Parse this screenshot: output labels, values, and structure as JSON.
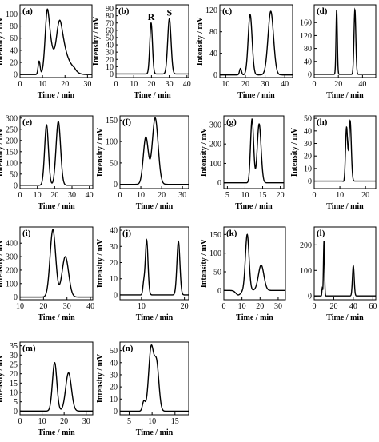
{
  "figure": {
    "panel_count": 14
  },
  "chart_data": [
    {
      "id": "a",
      "type": "line",
      "panel_label": "(a)",
      "xlabel": "Time / min",
      "ylabel": "Intensity / mV",
      "xlim": [
        0,
        32
      ],
      "ylim": [
        -5,
        115
      ],
      "xticks": [
        0,
        10,
        20,
        30
      ],
      "yticks": [
        0,
        20,
        40,
        60,
        80,
        100
      ],
      "baseline": 0,
      "peaks": [
        {
          "t": 8.5,
          "h": 22,
          "w": 0.45
        },
        {
          "t": 12.2,
          "h": 108,
          "w": 1.0,
          "tail": 2.2
        },
        {
          "t": 17.8,
          "h": 85,
          "w": 1.4,
          "tail": 3.2
        }
      ],
      "series": [
        {
          "x": [
            0,
            8.5,
            12.2,
            17.8,
            26,
            31
          ],
          "y": [
            0,
            22,
            108,
            85,
            6,
            0
          ]
        }
      ]
    },
    {
      "id": "b",
      "type": "line",
      "panel_label": "(b)",
      "xlabel": "Time / min",
      "ylabel": "Intensity / mV",
      "xlim": [
        0,
        41
      ],
      "ylim": [
        -5,
        95
      ],
      "xticks": [
        0,
        10,
        20,
        30,
        40
      ],
      "yticks": [
        0,
        10,
        20,
        30,
        40,
        50,
        60,
        70,
        80,
        90
      ],
      "baseline": 0,
      "peaks": [
        {
          "t": 19.8,
          "h": 70,
          "w": 0.75
        },
        {
          "t": 30.1,
          "h": 76,
          "w": 0.95
        }
      ],
      "annotations": [
        {
          "text": "R",
          "t": 19.8
        },
        {
          "text": "S",
          "t": 30.1
        }
      ],
      "series": [
        {
          "x": [
            0,
            19.8,
            30.1,
            41
          ],
          "y": [
            0,
            70,
            76,
            0
          ]
        }
      ]
    },
    {
      "id": "c",
      "type": "line",
      "panel_label": "(c)",
      "xlabel": "Time / min",
      "ylabel": "Intensity / mV",
      "xlim": [
        7,
        44
      ],
      "ylim": [
        -5,
        130
      ],
      "xticks": [
        10,
        20,
        30,
        40
      ],
      "yticks": [
        0,
        40,
        80,
        120
      ],
      "baseline": 0,
      "peaks": [
        {
          "t": 17.5,
          "h": 12,
          "w": 0.5
        },
        {
          "t": 22.4,
          "h": 112,
          "w": 1.0
        },
        {
          "t": 32.9,
          "h": 118,
          "w": 1.4
        }
      ],
      "series": [
        {
          "x": [
            7,
            17.5,
            22.4,
            32.9,
            44
          ],
          "y": [
            0,
            12,
            112,
            118,
            0
          ]
        }
      ]
    },
    {
      "id": "d",
      "type": "line",
      "panel_label": "(d)",
      "xlabel": "Time / min",
      "ylabel": "",
      "xlim": [
        0,
        51
      ],
      "ylim": [
        -10,
        215
      ],
      "xticks": [
        0,
        20,
        40
      ],
      "yticks": [
        0,
        40,
        80,
        120,
        160
      ],
      "baseline": 0,
      "peaks": [
        {
          "t": 18.6,
          "h": 200,
          "w": 0.55
        },
        {
          "t": 33.7,
          "h": 200,
          "w": 0.75
        }
      ],
      "series": [
        {
          "x": [
            0,
            18.6,
            33.7,
            51
          ],
          "y": [
            0,
            200,
            200,
            0
          ]
        }
      ]
    },
    {
      "id": "e",
      "type": "line",
      "panel_label": "(e)",
      "xlabel": "Time / min",
      "ylabel": "Intensity / mV",
      "xlim": [
        0,
        42
      ],
      "ylim": [
        -15,
        310
      ],
      "xticks": [
        0,
        10,
        20,
        30,
        40
      ],
      "yticks": [
        0,
        50,
        100,
        150,
        200,
        250,
        300
      ],
      "baseline": 0,
      "peaks": [
        {
          "t": 15.3,
          "h": 270,
          "w": 1.1
        },
        {
          "t": 22.1,
          "h": 285,
          "w": 1.3
        }
      ],
      "series": [
        {
          "x": [
            0,
            15.3,
            22.1,
            42
          ],
          "y": [
            0,
            270,
            285,
            0
          ]
        }
      ]
    },
    {
      "id": "f",
      "type": "line",
      "panel_label": "(f)",
      "xlabel": "Time / min",
      "ylabel": "Intensity / mV",
      "xlim": [
        0,
        33
      ],
      "ylim": [
        -10,
        160
      ],
      "xticks": [
        0,
        10,
        20,
        30
      ],
      "yticks": [
        0,
        50,
        100,
        150
      ],
      "baseline": 0,
      "peaks": [
        {
          "t": 12.4,
          "h": 110,
          "w": 1.2
        },
        {
          "t": 16.9,
          "h": 155,
          "w": 1.4
        }
      ],
      "series": [
        {
          "x": [
            0,
            12.4,
            16.9,
            33
          ],
          "y": [
            0,
            110,
            155,
            0
          ]
        }
      ]
    },
    {
      "id": "g",
      "type": "line",
      "panel_label": "(g)",
      "xlabel": "Time / min",
      "ylabel": "Intensity / mV",
      "xlim": [
        4,
        21
      ],
      "ylim": [
        -30,
        345
      ],
      "xticks": [
        5,
        10,
        15,
        20
      ],
      "yticks": [
        0,
        100,
        200,
        300
      ],
      "baseline": 0,
      "peaks": [
        {
          "t": 12.0,
          "h": 330,
          "w": 0.45,
          "dip": -10
        },
        {
          "t": 14.0,
          "h": 305,
          "w": 0.55,
          "dip": -12
        }
      ],
      "series": [
        {
          "x": [
            4,
            12.0,
            14.0,
            21
          ],
          "y": [
            0,
            330,
            305,
            -10
          ]
        }
      ]
    },
    {
      "id": "h",
      "type": "line",
      "panel_label": "(h)",
      "xlabel": "Time / min",
      "ylabel": "Intensity / mV",
      "xlim": [
        0,
        24
      ],
      "ylim": [
        -6,
        52
      ],
      "xticks": [
        0,
        10,
        20
      ],
      "yticks": [
        0,
        10,
        20,
        30,
        40,
        50
      ],
      "baseline": 0,
      "peaks": [
        {
          "t": 12.6,
          "h": 43,
          "w": 0.42,
          "dip": -3
        },
        {
          "t": 14.0,
          "h": 48,
          "w": 0.45
        }
      ],
      "series": [
        {
          "x": [
            0,
            12.6,
            14.0,
            24
          ],
          "y": [
            0,
            43,
            48,
            0
          ]
        }
      ]
    },
    {
      "id": "i",
      "type": "line",
      "panel_label": "(i)",
      "xlabel": "Time / min",
      "ylabel": "Intensity / mV",
      "xlim": [
        10,
        41
      ],
      "ylim": [
        -20,
        520
      ],
      "xticks": [
        10,
        20,
        30,
        40
      ],
      "yticks": [
        0,
        100,
        200,
        300,
        400
      ],
      "baseline": 0,
      "peaks": [
        {
          "t": 24.0,
          "h": 500,
          "w": 1.2
        },
        {
          "t": 29.3,
          "h": 300,
          "w": 1.4
        }
      ],
      "series": [
        {
          "x": [
            10,
            24.0,
            29.3,
            41
          ],
          "y": [
            0,
            500,
            300,
            0
          ]
        }
      ]
    },
    {
      "id": "j",
      "type": "line",
      "panel_label": "(j)",
      "xlabel": "Time / min",
      "ylabel": "Intensity / mV",
      "xlim": [
        5,
        21
      ],
      "ylim": [
        -3,
        42
      ],
      "xticks": [
        10,
        20
      ],
      "yticks": [
        0,
        10,
        20,
        30,
        40
      ],
      "baseline": 0,
      "peaks": [
        {
          "t": 10.5,
          "h": 6,
          "w": 0.2
        },
        {
          "t": 11.2,
          "h": 34,
          "w": 0.32
        },
        {
          "t": 18.6,
          "h": 33,
          "w": 0.35
        }
      ],
      "series": [
        {
          "x": [
            5,
            10.5,
            11.2,
            18.6,
            21
          ],
          "y": [
            0,
            6,
            34,
            33,
            0
          ]
        }
      ]
    },
    {
      "id": "k",
      "type": "line",
      "panel_label": "(k)",
      "xlabel": "Time / min",
      "ylabel": "Intensity / mV",
      "xlim": [
        0,
        34
      ],
      "ylim": [
        -25,
        170
      ],
      "xticks": [
        0,
        10,
        20,
        30
      ],
      "yticks": [
        0,
        50,
        100,
        150
      ],
      "baseline": 0,
      "peaks": [
        {
          "t": 8.0,
          "h": -12,
          "w": 1.4
        },
        {
          "t": 12.9,
          "h": 150,
          "w": 1.0
        },
        {
          "t": 20.6,
          "h": 68,
          "w": 1.5
        }
      ],
      "series": [
        {
          "x": [
            0,
            8.0,
            12.9,
            20.6,
            34
          ],
          "y": [
            0,
            -12,
            150,
            68,
            -5
          ]
        }
      ]
    },
    {
      "id": "l",
      "type": "line",
      "panel_label": "(l)",
      "xlabel": "Time / min",
      "ylabel": "",
      "xlim": [
        0,
        63
      ],
      "ylim": [
        -15,
        270
      ],
      "xticks": [
        0,
        20,
        40,
        60
      ],
      "yticks": [
        0,
        100,
        200
      ],
      "baseline": 0,
      "peaks": [
        {
          "t": 8.2,
          "h": 30,
          "w": 0.35
        },
        {
          "t": 10.0,
          "h": 215,
          "w": 0.55
        },
        {
          "t": 40.0,
          "h": 118,
          "w": 0.9
        }
      ],
      "series": [
        {
          "x": [
            0,
            8.2,
            10.0,
            40.0,
            63
          ],
          "y": [
            0,
            30,
            215,
            118,
            0
          ]
        }
      ]
    },
    {
      "id": "m",
      "type": "line",
      "panel_label": "(m)",
      "xlabel": "Time / min",
      "ylabel": "Intensity / mV",
      "xlim": [
        0,
        33
      ],
      "ylim": [
        -2,
        37
      ],
      "xticks": [
        0,
        10,
        20,
        30
      ],
      "yticks": [
        0,
        5,
        10,
        15,
        20,
        25,
        30,
        35
      ],
      "baseline": 0,
      "peaks": [
        {
          "t": 15.7,
          "h": 26,
          "w": 1.0
        },
        {
          "t": 22.0,
          "h": 20.5,
          "w": 1.3
        }
      ],
      "series": [
        {
          "x": [
            0,
            15.7,
            22.0,
            33
          ],
          "y": [
            0,
            26,
            20.5,
            0
          ]
        }
      ]
    },
    {
      "id": "n",
      "type": "line",
      "panel_label": "(n)",
      "xlabel": "Time / min",
      "ylabel": "Intensity / mV",
      "xlim": [
        3,
        18
      ],
      "ylim": [
        -3,
        57
      ],
      "xticks": [
        5,
        10,
        15
      ],
      "yticks": [
        0,
        10,
        20,
        30,
        40,
        50
      ],
      "baseline": 0,
      "peaks": [
        {
          "t": 8.2,
          "h": 8,
          "w": 0.3
        },
        {
          "t": 9.8,
          "h": 52,
          "w": 0.55
        },
        {
          "t": 11.0,
          "h": 38,
          "w": 0.5
        }
      ],
      "series": [
        {
          "x": [
            3,
            8.2,
            9.8,
            11.0,
            18
          ],
          "y": [
            0,
            8,
            52,
            38,
            0
          ]
        }
      ]
    }
  ]
}
